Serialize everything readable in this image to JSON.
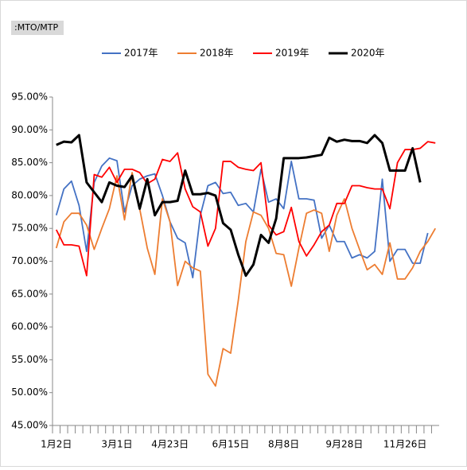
{
  "chart_data": {
    "type": "line",
    "title": ":MTO/MTP",
    "categories": [
      "1月2日",
      null,
      null,
      null,
      null,
      null,
      null,
      null,
      "3月1日",
      null,
      null,
      null,
      null,
      null,
      null,
      "4月23日",
      null,
      null,
      null,
      null,
      null,
      null,
      null,
      "6月15日",
      null,
      null,
      null,
      null,
      null,
      null,
      "8月8日",
      null,
      null,
      null,
      null,
      null,
      null,
      null,
      "9月28日",
      null,
      null,
      null,
      null,
      null,
      null,
      null,
      "11月26日",
      null,
      null,
      null,
      null
    ],
    "series": [
      {
        "name": "2017年",
        "color": "#4472c4",
        "values": [
          77,
          81,
          82.2,
          78.5,
          71.5,
          82,
          84.5,
          85.7,
          85.3,
          77.5,
          81.5,
          82.5,
          83,
          83.3,
          80,
          76,
          73.5,
          72.8,
          67.5,
          77,
          81.5,
          82,
          80.3,
          80.5,
          78.5,
          78.8,
          77.5,
          84,
          79,
          79.5,
          78,
          85.2,
          79.5,
          79.5,
          79.3,
          73.5,
          75.5,
          73,
          73,
          70.5,
          71,
          70.5,
          71.5,
          82.5,
          70,
          71.8,
          71.8,
          69.7,
          69.7,
          74.3,
          null
        ]
      },
      {
        "name": "2018年",
        "color": "#ed7d31",
        "values": [
          72,
          76,
          77.3,
          77.3,
          75.5,
          71.8,
          75,
          78,
          83,
          76.3,
          83.5,
          78,
          72,
          68,
          79.5,
          76,
          66.3,
          70,
          69,
          68.5,
          52.8,
          51,
          56.7,
          56,
          64,
          73,
          77.5,
          77,
          75,
          71.2,
          71,
          66.2,
          72,
          77.3,
          77.8,
          77.3,
          71.5,
          77,
          79.5,
          75,
          71.8,
          68.7,
          69.5,
          68,
          72.8,
          67.3,
          67.3,
          69,
          71.5,
          73,
          75
        ]
      },
      {
        "name": "2019年",
        "color": "#ff0000",
        "values": [
          74.8,
          72.5,
          72.5,
          72.3,
          67.8,
          83.2,
          82.8,
          84.3,
          82,
          84,
          84,
          83.5,
          81.8,
          82.5,
          85.5,
          85.2,
          86.5,
          81,
          78.3,
          77.5,
          72.3,
          75,
          85.2,
          85.2,
          84.3,
          84,
          83.8,
          85,
          75.5,
          74,
          74.5,
          78.2,
          73,
          70.8,
          72.5,
          74.5,
          75.5,
          78.8,
          78.8,
          81.5,
          81.5,
          81.2,
          81,
          81,
          78,
          85,
          87,
          87,
          87.2,
          88.2,
          88
        ]
      },
      {
        "name": "2020年",
        "color": "#000000",
        "values": [
          87.7,
          88.2,
          88.1,
          89.2,
          82,
          80.5,
          79,
          82,
          81.5,
          81.3,
          83,
          78,
          82.5,
          77,
          79,
          79,
          79.2,
          83.8,
          80.2,
          80.2,
          80.4,
          80,
          75.8,
          74.8,
          71,
          67.8,
          69.5,
          74,
          72.8,
          76.5,
          85.7,
          85.7,
          85.7,
          85.8,
          86,
          86.2,
          88.8,
          88.2,
          88.5,
          88.3,
          88.3,
          88,
          89.2,
          88,
          83.8,
          83.8,
          83.8,
          87.2,
          82,
          null,
          null
        ]
      }
    ],
    "ylim": [
      45,
      95
    ],
    "yticks": [
      {
        "value": 45,
        "label": "45.00%"
      },
      {
        "value": 50,
        "label": "50.00%"
      },
      {
        "value": 55,
        "label": "55.00%"
      },
      {
        "value": 60,
        "label": "60.00%"
      },
      {
        "value": 65,
        "label": "65.00%"
      },
      {
        "value": 70,
        "label": "70.00%"
      },
      {
        "value": 75,
        "label": "75.00%"
      },
      {
        "value": 80,
        "label": "80.00%"
      },
      {
        "value": 85,
        "label": "85.00%"
      },
      {
        "value": 90,
        "label": "90.00%"
      },
      {
        "value": 95,
        "label": "95.00%"
      }
    ],
    "grid": false
  }
}
